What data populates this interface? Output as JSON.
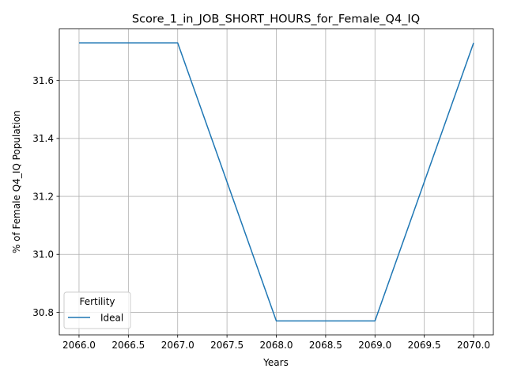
{
  "chart_data": {
    "type": "line",
    "title": "Score_1_in_JOB_SHORT_HOURS_for_Female_Q4_IQ",
    "xlabel": "Years",
    "ylabel": "% of Female Q4_IQ Population",
    "x": [
      2066,
      2067,
      2068,
      2069,
      2070
    ],
    "series": [
      {
        "name": "Ideal",
        "values": [
          31.73,
          31.73,
          30.77,
          30.77,
          31.73
        ],
        "color": "#1f77b4"
      }
    ],
    "xlim": [
      2065.8,
      2070.2
    ],
    "ylim": [
      30.722,
      31.778
    ],
    "xticks": [
      2066.0,
      2066.5,
      2067.0,
      2067.5,
      2068.0,
      2068.5,
      2069.0,
      2069.5,
      2070.0
    ],
    "xtick_labels": [
      "2066.0",
      "2066.5",
      "2067.0",
      "2067.5",
      "2068.0",
      "2068.5",
      "2069.0",
      "2069.5",
      "2070.0"
    ],
    "yticks": [
      30.8,
      31.0,
      31.2,
      31.4,
      31.6
    ],
    "ytick_labels": [
      "30.8",
      "31.0",
      "31.2",
      "31.4",
      "31.6"
    ],
    "grid": true,
    "legend": {
      "title": "Fertility",
      "placement": "lower-left"
    }
  }
}
